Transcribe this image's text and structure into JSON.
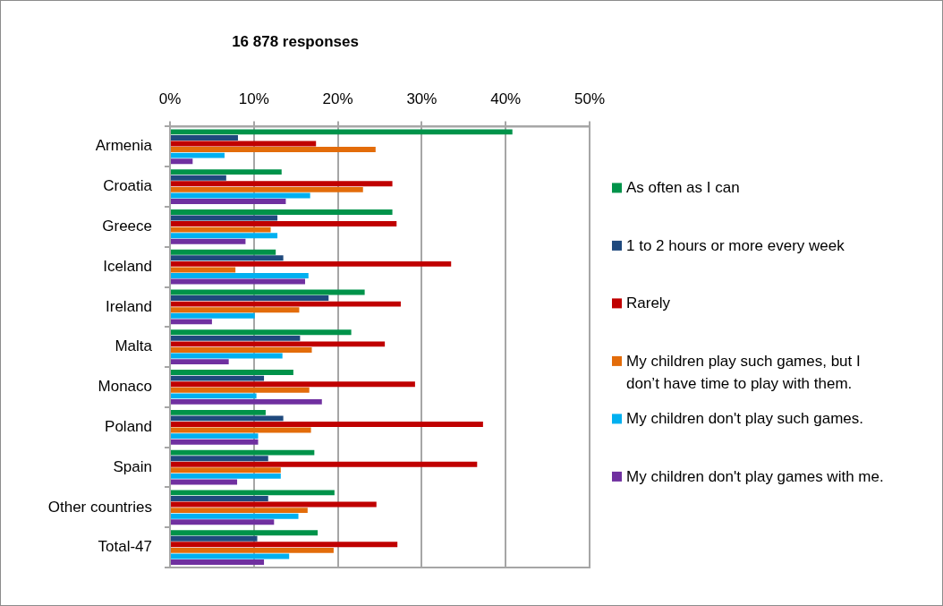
{
  "chart_data": {
    "type": "bar",
    "orientation": "horizontal",
    "title": "16 878 responses",
    "categories": [
      "Armenia",
      "Croatia",
      "Greece",
      "Iceland",
      "Ireland",
      "Malta",
      "Monaco",
      "Poland",
      "Spain",
      "Other countries",
      "Total-47"
    ],
    "series": [
      {
        "name": "As often as I can",
        "color": "#00934a",
        "values": [
          40.8,
          13.3,
          26.5,
          12.6,
          23.2,
          21.6,
          14.7,
          11.4,
          17.2,
          19.6,
          17.6
        ]
      },
      {
        "name": "1 to 2 hours or more every week",
        "color": "#1f497d",
        "values": [
          8.1,
          6.7,
          12.8,
          13.5,
          18.9,
          15.5,
          11.2,
          13.5,
          11.7,
          11.7,
          10.4
        ]
      },
      {
        "name": "Rarely",
        "color": "#c00000",
        "values": [
          17.4,
          26.5,
          27.0,
          33.5,
          27.5,
          25.6,
          29.2,
          37.3,
          36.6,
          24.6,
          27.1
        ]
      },
      {
        "name": "My children play such games, but I don’t have time to play with them.",
        "color": "#e36c0a",
        "values": [
          24.5,
          23.0,
          12.0,
          7.8,
          15.4,
          16.9,
          16.6,
          16.8,
          13.2,
          16.4,
          19.5
        ]
      },
      {
        "name": "My children don't play such games.",
        "color": "#00b0f0",
        "values": [
          6.5,
          16.7,
          12.8,
          16.5,
          10.1,
          13.4,
          10.3,
          10.5,
          13.2,
          15.3,
          14.2
        ]
      },
      {
        "name": "My children don't play games with me.",
        "color": "#7030a0",
        "values": [
          2.7,
          13.8,
          9.0,
          16.1,
          5.0,
          7.0,
          18.1,
          10.5,
          8.0,
          12.4,
          11.2
        ]
      }
    ],
    "xlim": [
      0,
      50
    ],
    "xticks": [
      {
        "value": 0,
        "label": "0%"
      },
      {
        "value": 10,
        "label": "10%"
      },
      {
        "value": 20,
        "label": "20%"
      },
      {
        "value": 30,
        "label": "30%"
      },
      {
        "value": 40,
        "label": "40%"
      },
      {
        "value": 50,
        "label": "50%"
      }
    ],
    "grid": "x",
    "legend": "right"
  }
}
